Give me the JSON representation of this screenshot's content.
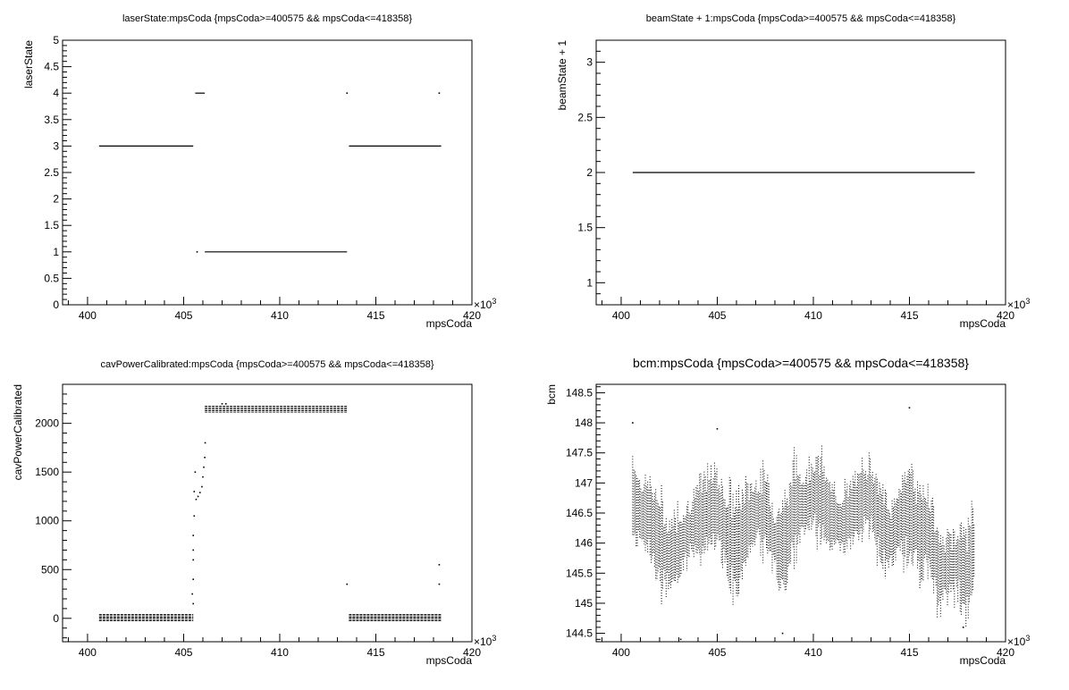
{
  "chart_data": [
    {
      "type": "scatter",
      "title": "laserState:mpsCoda {mpsCoda>=400575 && mpsCoda<=418358}",
      "xlabel": "mpsCoda",
      "ylabel": "laserState",
      "x_exponent_label": "×10",
      "x_exponent": "3",
      "xlim": [
        398.7,
        420.0
      ],
      "ylim": [
        0,
        5
      ],
      "x_ticks": [
        400,
        405,
        410,
        415,
        420
      ],
      "y_ticks": [
        0,
        0.5,
        1,
        1.5,
        2,
        2.5,
        3,
        3.5,
        4,
        4.5,
        5
      ],
      "y_tick_labels": [
        "0",
        "0.5",
        "1",
        "1.5",
        "2",
        "2.5",
        "3",
        "3.5",
        "4",
        "4.5",
        "5"
      ],
      "grid": false,
      "segments": [
        {
          "x": [
            400.6,
            405.5
          ],
          "y": 3
        },
        {
          "x": [
            405.6,
            406.1
          ],
          "y": 4
        },
        {
          "x": [
            406.1,
            413.5
          ],
          "y": 1
        },
        {
          "x": [
            413.6,
            418.4
          ],
          "y": 3
        }
      ],
      "points": [
        {
          "x": 405.7,
          "y": 1
        },
        {
          "x": 413.5,
          "y": 4
        },
        {
          "x": 418.3,
          "y": 4
        }
      ]
    },
    {
      "type": "scatter",
      "title": "beamState + 1:mpsCoda {mpsCoda>=400575 && mpsCoda<=418358}",
      "xlabel": "mpsCoda",
      "ylabel": "beamState + 1",
      "x_exponent_label": "×10",
      "x_exponent": "3",
      "xlim": [
        398.7,
        420.0
      ],
      "ylim": [
        0.8,
        3.2
      ],
      "x_ticks": [
        400,
        405,
        410,
        415,
        420
      ],
      "y_ticks": [
        1,
        1.5,
        2,
        2.5,
        3
      ],
      "y_tick_labels": [
        "1",
        "1.5",
        "2",
        "2.5",
        "3"
      ],
      "grid": false,
      "segments": [
        {
          "x": [
            400.6,
            418.4
          ],
          "y": 2
        }
      ],
      "points": []
    },
    {
      "type": "scatter",
      "title": "cavPowerCalibrated:mpsCoda {mpsCoda>=400575 && mpsCoda<=418358}",
      "xlabel": "mpsCoda",
      "ylabel": "cavPowerCalibrated",
      "x_exponent_label": "×10",
      "x_exponent": "3",
      "xlim": [
        398.7,
        420.0
      ],
      "ylim": [
        -240,
        2400
      ],
      "x_ticks": [
        400,
        405,
        410,
        415,
        420
      ],
      "y_ticks": [
        0,
        500,
        1000,
        1500,
        2000
      ],
      "y_tick_labels": [
        "0",
        "500",
        "1000",
        "1500",
        "2000"
      ],
      "grid": false,
      "bands": [
        {
          "x": [
            400.6,
            405.5
          ],
          "y": [
            -25,
            40
          ],
          "rows": 6
        },
        {
          "x": [
            406.1,
            413.5
          ],
          "y": [
            2115,
            2175
          ],
          "rows": 5
        },
        {
          "x": [
            413.6,
            418.4
          ],
          "y": [
            -25,
            40
          ],
          "rows": 6
        }
      ],
      "points": [
        {
          "x": 405.5,
          "y": 850
        },
        {
          "x": 405.5,
          "y": 700
        },
        {
          "x": 405.5,
          "y": 600
        },
        {
          "x": 405.55,
          "y": 1050
        },
        {
          "x": 405.55,
          "y": 1300
        },
        {
          "x": 405.6,
          "y": 1500
        },
        {
          "x": 405.5,
          "y": 400
        },
        {
          "x": 405.45,
          "y": 250
        },
        {
          "x": 405.5,
          "y": 150
        },
        {
          "x": 405.65,
          "y": 1220
        },
        {
          "x": 405.75,
          "y": 1250
        },
        {
          "x": 405.85,
          "y": 1290
        },
        {
          "x": 405.95,
          "y": 1350
        },
        {
          "x": 406.0,
          "y": 1450
        },
        {
          "x": 406.05,
          "y": 1550
        },
        {
          "x": 406.1,
          "y": 1650
        },
        {
          "x": 406.12,
          "y": 1800
        },
        {
          "x": 407.0,
          "y": 2200
        },
        {
          "x": 407.2,
          "y": 2200
        },
        {
          "x": 413.5,
          "y": 350
        },
        {
          "x": 418.3,
          "y": 550
        },
        {
          "x": 418.3,
          "y": 350
        }
      ]
    },
    {
      "type": "scatter",
      "title": "bcm:mpsCoda {mpsCoda>=400575 && mpsCoda<=418358}",
      "xlabel": "mpsCoda",
      "ylabel": "bcm",
      "x_exponent_label": "×10",
      "x_exponent": "3",
      "xlim": [
        398.7,
        420.0
      ],
      "ylim": [
        144.36,
        148.64
      ],
      "x_ticks": [
        400,
        405,
        410,
        415,
        420
      ],
      "y_ticks": [
        144.5,
        145,
        145.5,
        146,
        146.5,
        147,
        147.5,
        148,
        148.5
      ],
      "y_tick_labels": [
        "144.5",
        "145",
        "145.5",
        "146",
        "146.5",
        "147",
        "147.5",
        "148",
        "148.5"
      ],
      "grid": false,
      "profile": {
        "x": [
          400.6,
          401.0,
          401.5,
          402.0,
          402.5,
          403.0,
          403.5,
          404.0,
          404.5,
          405.0,
          405.5,
          406.0,
          406.5,
          407.0,
          407.5,
          408.0,
          408.5,
          409.0,
          409.5,
          410.0,
          410.5,
          411.0,
          411.5,
          412.0,
          412.5,
          413.0,
          413.5,
          414.0,
          414.5,
          415.0,
          415.5,
          416.0,
          416.5,
          417.0,
          417.5,
          418.0,
          418.4
        ],
        "center": [
          146.7,
          146.5,
          146.4,
          146.0,
          145.8,
          145.9,
          146.2,
          146.4,
          146.5,
          146.6,
          146.1,
          145.9,
          146.3,
          146.5,
          146.5,
          146.0,
          145.9,
          146.6,
          146.6,
          146.8,
          146.7,
          146.4,
          146.3,
          146.5,
          146.7,
          146.8,
          146.3,
          146.1,
          146.4,
          146.5,
          146.2,
          146.2,
          145.5,
          145.6,
          145.7,
          145.5,
          145.9
        ],
        "halfwidth": [
          0.9,
          0.6,
          0.7,
          0.8,
          0.6,
          0.7,
          0.5,
          0.6,
          0.7,
          0.7,
          0.8,
          0.9,
          0.7,
          0.6,
          0.7,
          0.6,
          0.9,
          0.8,
          0.6,
          0.7,
          0.7,
          0.5,
          0.6,
          0.5,
          0.6,
          0.7,
          0.7,
          0.5,
          0.6,
          1.0,
          0.7,
          0.8,
          0.7,
          0.5,
          0.6,
          0.8,
          0.7
        ]
      },
      "points": [
        {
          "x": 400.6,
          "y": 148.0
        },
        {
          "x": 403.1,
          "y": 144.4
        },
        {
          "x": 405.0,
          "y": 147.9
        },
        {
          "x": 408.4,
          "y": 144.5
        },
        {
          "x": 415.0,
          "y": 148.25
        },
        {
          "x": 417.8,
          "y": 144.6
        }
      ]
    }
  ]
}
